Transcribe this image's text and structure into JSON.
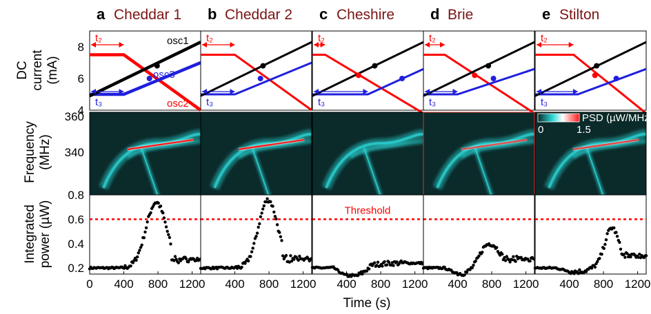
{
  "colors": {
    "osc1": "#000000",
    "osc2": "#ff0000",
    "osc3": "#1f1fdd",
    "title": "#7a1414",
    "threshold": "#ff0000",
    "heat_bg": "#0b2a2a",
    "heat_low": "#2bd6d6",
    "heat_high": "#ff1a1a"
  },
  "panels": [
    {
      "letter": "a",
      "name": "Cheddar 1"
    },
    {
      "letter": "b",
      "name": "Cheddar 2"
    },
    {
      "letter": "c",
      "name": "Cheshire"
    },
    {
      "letter": "d",
      "name": "Brie"
    },
    {
      "letter": "e",
      "name": "Stilton"
    }
  ],
  "annotations": {
    "t2": "t₂",
    "t3": "t₃",
    "osc1": "osc1",
    "osc2": "osc2",
    "osc3": "osc3",
    "threshold": "Threshold",
    "psd_label": "PSD (µW/MHz",
    "psd_min": "0",
    "psd_max": "1.5"
  },
  "chart_data": [
    {
      "type": "line",
      "row": "top",
      "ylabel": [
        "DC",
        "current",
        "(mA)"
      ],
      "yticks": [
        "4",
        "6",
        "8"
      ],
      "ylim": [
        4,
        9
      ],
      "xlim": [
        0,
        1300
      ],
      "panels": [
        {
          "osc1": [
            [
              0,
              4.9
            ],
            [
              1300,
              8.3
            ]
          ],
          "osc2": [
            [
              0,
              7.5
            ],
            [
              400,
              7.5
            ],
            [
              1300,
              4.0
            ]
          ],
          "osc3": [
            [
              0,
              5.0
            ],
            [
              400,
              5.0
            ],
            [
              1300,
              7.0
            ]
          ],
          "marks": [
            [
              790,
              6.8
            ],
            [
              700,
              6.0
            ]
          ]
        },
        {
          "osc1": [
            [
              0,
              4.9
            ],
            [
              1300,
              8.3
            ]
          ],
          "osc2": [
            [
              0,
              7.5
            ],
            [
              400,
              7.5
            ],
            [
              1300,
              4.0
            ]
          ],
          "osc3": [
            [
              0,
              5.0
            ],
            [
              400,
              5.0
            ],
            [
              1300,
              7.0
            ]
          ],
          "marks": [
            [
              730,
              6.8
            ],
            [
              700,
              6.0
            ]
          ]
        },
        {
          "osc1": [
            [
              0,
              4.9
            ],
            [
              1300,
              8.3
            ]
          ],
          "osc2": [
            [
              0,
              7.5
            ],
            [
              150,
              7.5
            ],
            [
              1300,
              3.8
            ]
          ],
          "osc3": [
            [
              0,
              5.0
            ],
            [
              650,
              5.0
            ],
            [
              1300,
              6.6
            ]
          ],
          "marks": [
            [
              540,
              6.2
            ],
            [
              730,
              6.8
            ],
            [
              1050,
              6.0
            ]
          ]
        },
        {
          "osc1": [
            [
              0,
              4.9
            ],
            [
              1300,
              8.3
            ]
          ],
          "osc2": [
            [
              0,
              7.5
            ],
            [
              250,
              7.5
            ],
            [
              1300,
              3.8
            ]
          ],
          "osc3": [
            [
              0,
              5.0
            ],
            [
              400,
              5.0
            ],
            [
              1300,
              6.6
            ]
          ],
          "marks": [
            [
              600,
              6.2
            ],
            [
              760,
              6.8
            ],
            [
              820,
              6.0
            ]
          ]
        },
        {
          "osc1": [
            [
              0,
              4.9
            ],
            [
              1300,
              8.3
            ]
          ],
          "osc2": [
            [
              0,
              7.5
            ],
            [
              450,
              7.5
            ],
            [
              1300,
              3.8
            ]
          ],
          "osc3": [
            [
              0,
              5.0
            ],
            [
              500,
              5.0
            ],
            [
              1300,
              6.6
            ]
          ],
          "marks": [
            [
              700,
              6.2
            ],
            [
              720,
              6.8
            ],
            [
              950,
              6.0
            ]
          ]
        }
      ]
    },
    {
      "type": "heatmap",
      "row": "middle",
      "ylabel": [
        "Frequency",
        "(MHz)"
      ],
      "yticks": [
        "360",
        "340"
      ],
      "ylim": [
        320,
        360
      ],
      "colorbar": {
        "label": "PSD (µW/MHz",
        "min": 0,
        "max": 1.5
      }
    },
    {
      "type": "scatter",
      "row": "bottom",
      "title": "",
      "xlabel": "Time (s)",
      "ylabel": [
        "Integrated",
        "power (µW)"
      ],
      "yticks": [
        "0.2",
        "0.4",
        "0.6",
        "0.8"
      ],
      "xticks": [
        "0",
        "400",
        "800",
        "1200"
      ],
      "ylim": [
        0.15,
        0.8
      ],
      "xlim": [
        0,
        1300
      ],
      "threshold": 0.6,
      "panels": [
        {
          "base": 0.2,
          "peak": 0.74,
          "peak_x": 780,
          "width": 170,
          "tail": 0.27,
          "dip": 0
        },
        {
          "base": 0.2,
          "peak": 0.76,
          "peak_x": 790,
          "width": 160,
          "tail": 0.28,
          "dip": 0
        },
        {
          "base": 0.2,
          "peak": 0.24,
          "peak_x": 1000,
          "width": 450,
          "tail": 0.24,
          "dip": 0.08
        },
        {
          "base": 0.2,
          "peak": 0.4,
          "peak_x": 780,
          "width": 170,
          "tail": 0.27,
          "dip": 0.05
        },
        {
          "base": 0.2,
          "peak": 0.53,
          "peak_x": 900,
          "width": 120,
          "tail": 0.3,
          "dip": 0.03
        }
      ]
    }
  ]
}
